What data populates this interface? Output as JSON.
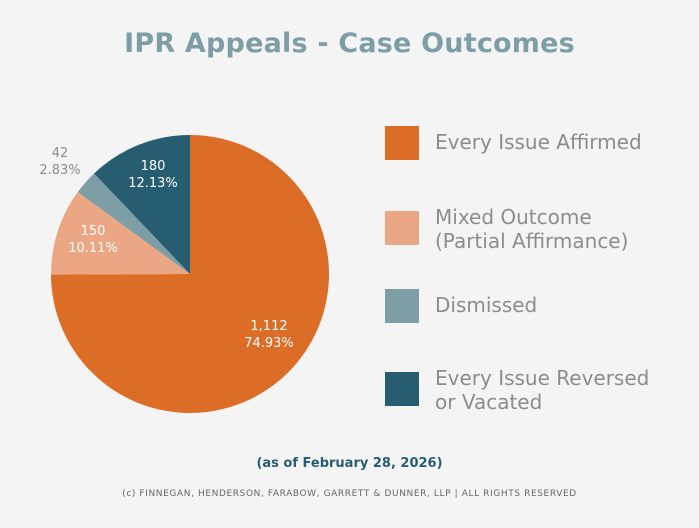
{
  "chart_data": {
    "type": "pie",
    "title": "IPR Appeals - Case Outcomes",
    "slices": [
      {
        "label": "Every Issue Affirmed",
        "count_label": "1,112",
        "percent_label": "74.93%",
        "value": 74.93,
        "color": "#db6d27"
      },
      {
        "label": "Mixed Outcome\n(Partial Affirmance)",
        "count_label": "150",
        "percent_label": "10.11%",
        "value": 10.11,
        "color": "#eba683"
      },
      {
        "label": "Dismissed",
        "count_label": "42",
        "percent_label": "2.83%",
        "value": 2.83,
        "color": "#7e9ea6"
      },
      {
        "label": "Every Issue Reversed\nor Vacated",
        "count_label": "180",
        "percent_label": "12.13%",
        "value": 12.13,
        "color": "#275d70"
      }
    ],
    "legend": "right"
  },
  "footer": {
    "as_of": "(as of February 28, 2026)",
    "copyright": "(c) FINNEGAN, HENDERSON, FARABOW, GARRETT & DUNNER, LLP | ALL RIGHTS RESERVED"
  }
}
